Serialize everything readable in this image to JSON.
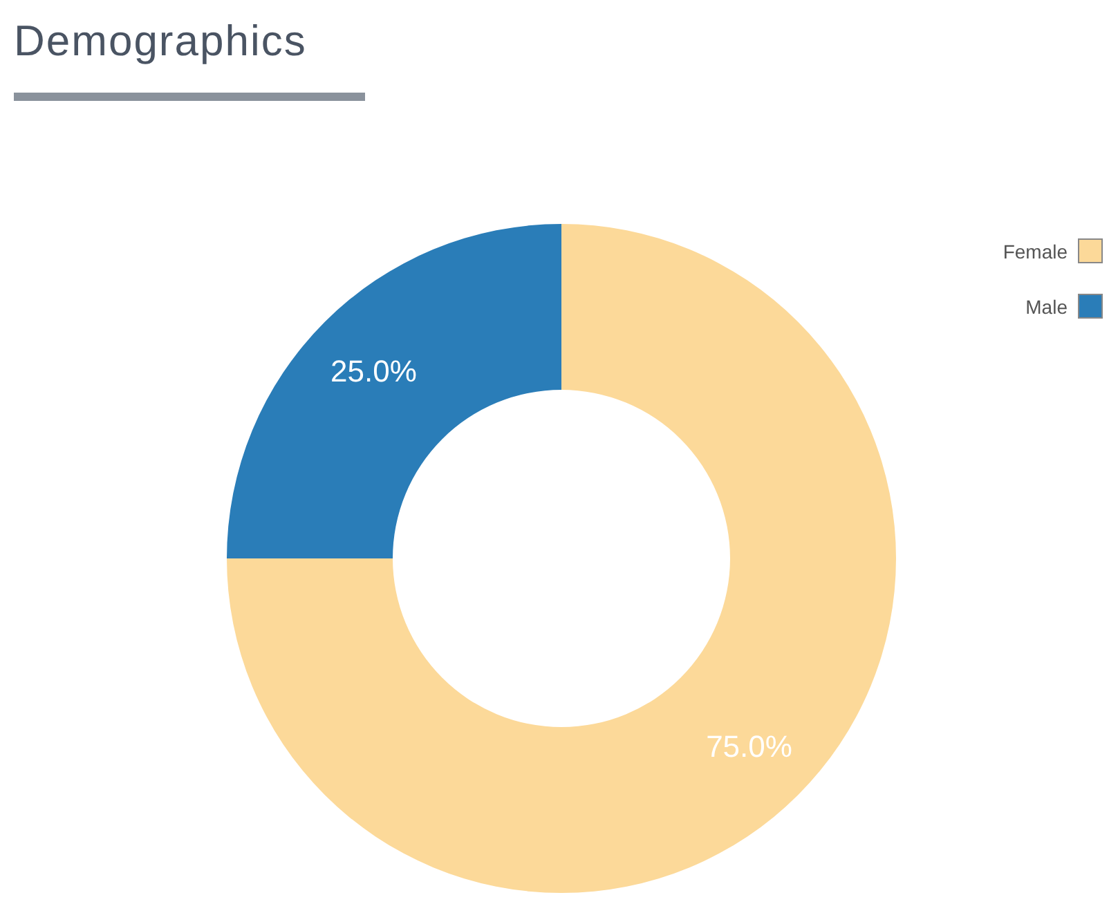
{
  "chart_data": {
    "type": "donut",
    "title": "Demographics",
    "categories": [
      "Female",
      "Male"
    ],
    "values": [
      75,
      25
    ],
    "colors": [
      "#fcd999",
      "#2a7db8"
    ],
    "value_labels": [
      "75.0%",
      "25.0%"
    ],
    "legend": "top right"
  }
}
